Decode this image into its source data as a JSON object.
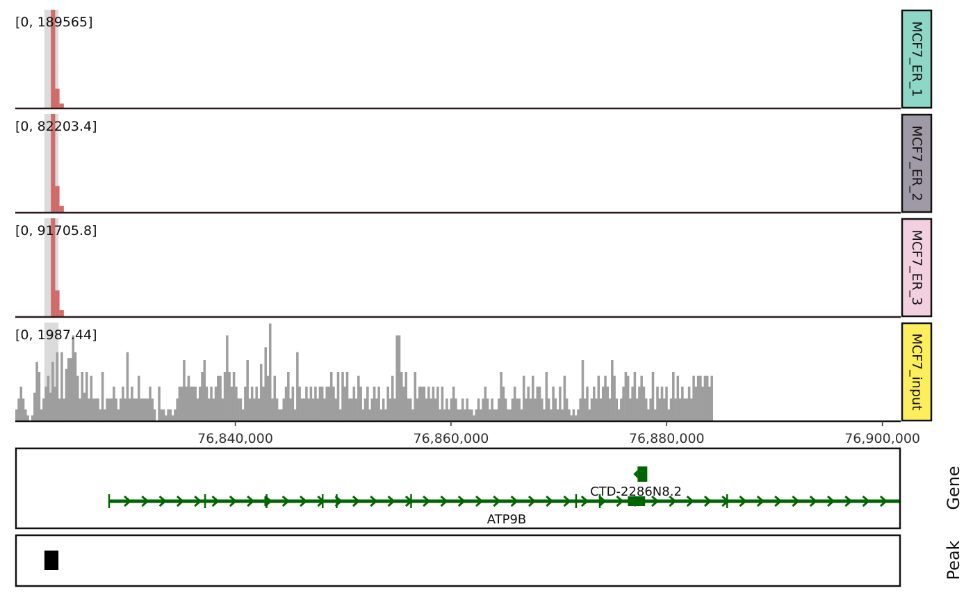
{
  "chart_data": {
    "type": "genome-browser-tracks",
    "region": {
      "start": 76819600,
      "end": 76901700
    },
    "highlight": {
      "start": 76822300,
      "end": 76823600
    },
    "colors": {
      "signal": "#d16a6a",
      "input": "#9e9e9e",
      "highlight": "#c8c8c8",
      "gene": "#006400",
      "peak": "#000000",
      "label_ER_1": "#8ed6c6",
      "label_ER_2": "#a09aa7",
      "label_ER_3": "#f2d0df",
      "label_input": "#fcee5c"
    },
    "tracks": [
      {
        "name": "MCF7_ER_1",
        "range_label": "[0, 189565]",
        "bins": [
          [
            76822900,
            76823300,
            1.0
          ],
          [
            76823300,
            76823700,
            0.2
          ],
          [
            76823700,
            76824100,
            0.05
          ]
        ]
      },
      {
        "name": "MCF7_ER_2",
        "range_label": "[0, 82203.4]",
        "bins": [
          [
            76822900,
            76823300,
            1.0
          ],
          [
            76823300,
            76823700,
            0.27
          ],
          [
            76823700,
            76824100,
            0.07
          ]
        ]
      },
      {
        "name": "MCF7_ER_3",
        "range_label": "[0, 91705.8]",
        "bins": [
          [
            76822900,
            76823300,
            1.0
          ],
          [
            76823300,
            76823700,
            0.27
          ],
          [
            76823700,
            76824100,
            0.07
          ]
        ]
      },
      {
        "name": "MCF7_input",
        "range_label": "[0, 1987.44]",
        "bin_start": 76819600,
        "bin_width": 210,
        "values": [
          0.12,
          0.23,
          0.35,
          0.23,
          0.12,
          0.06,
          0.0,
          0.06,
          0.29,
          0.6,
          0.5,
          0.12,
          0.23,
          0.35,
          0.46,
          0.29,
          0.6,
          0.35,
          0.7,
          0.23,
          0.7,
          0.23,
          0.53,
          0.64,
          0.64,
          0.87,
          0.7,
          0.46,
          0.23,
          0.5,
          0.29,
          0.5,
          0.23,
          0.46,
          0.23,
          0.23,
          0.23,
          0.12,
          0.5,
          0.12,
          0.23,
          0.23,
          0.23,
          0.35,
          0.23,
          0.12,
          0.23,
          0.35,
          0.23,
          0.7,
          0.23,
          0.35,
          0.23,
          0.23,
          0.46,
          0.23,
          0.23,
          0.23,
          0.23,
          0.35,
          0.23,
          0.12,
          0.0,
          0.35,
          0.12,
          0.12,
          0.06,
          0.12,
          0.12,
          0.06,
          0.12,
          0.23,
          0.35,
          0.35,
          0.62,
          0.35,
          0.46,
          0.35,
          0.35,
          0.35,
          0.23,
          0.35,
          0.5,
          0.62,
          0.35,
          0.23,
          0.35,
          0.23,
          0.35,
          0.46,
          0.46,
          0.23,
          0.5,
          0.87,
          0.5,
          0.35,
          0.5,
          0.35,
          0.23,
          0.23,
          0.12,
          0.35,
          0.62,
          0.23,
          0.35,
          0.23,
          0.35,
          0.23,
          0.58,
          0.35,
          0.75,
          0.46,
          0.99,
          0.23,
          0.46,
          0.23,
          0.12,
          0.12,
          0.23,
          0.35,
          0.5,
          0.23,
          0.35,
          0.12,
          0.7,
          0.35,
          0.23,
          0.23,
          0.35,
          0.23,
          0.35,
          0.23,
          0.35,
          0.23,
          0.35,
          0.35,
          0.23,
          0.35,
          0.35,
          0.5,
          0.35,
          0.23,
          0.5,
          0.12,
          0.5,
          0.35,
          0.5,
          0.23,
          0.23,
          0.35,
          0.23,
          0.46,
          0.35,
          0.12,
          0.23,
          0.35,
          0.12,
          0.23,
          0.35,
          0.23,
          0.35,
          0.12,
          0.23,
          0.12,
          0.35,
          0.23,
          0.46,
          0.23,
          0.87,
          0.87,
          0.5,
          0.35,
          0.5,
          0.23,
          0.23,
          0.12,
          0.5,
          0.23,
          0.35,
          0.35,
          0.35,
          0.23,
          0.35,
          0.23,
          0.35,
          0.23,
          0.35,
          0.12,
          0.35,
          0.12,
          0.23,
          0.12,
          0.23,
          0.35,
          0.23,
          0.12,
          0.12,
          0.23,
          0.12,
          0.23,
          0.12,
          0.12,
          0.06,
          0.12,
          0.23,
          0.12,
          0.23,
          0.35,
          0.23,
          0.12,
          0.23,
          0.12,
          0.12,
          0.23,
          0.5,
          0.35,
          0.23,
          0.12,
          0.12,
          0.23,
          0.35,
          0.23,
          0.23,
          0.12,
          0.46,
          0.23,
          0.35,
          0.23,
          0.46,
          0.23,
          0.35,
          0.35,
          0.23,
          0.12,
          0.5,
          0.23,
          0.12,
          0.35,
          0.23,
          0.12,
          0.35,
          0.12,
          0.46,
          0.23,
          0.12,
          0.06,
          0.12,
          0.06,
          0.12,
          0.23,
          0.62,
          0.23,
          0.35,
          0.12,
          0.23,
          0.35,
          0.23,
          0.46,
          0.23,
          0.35,
          0.46,
          0.35,
          0.23,
          0.62,
          0.46,
          0.23,
          0.12,
          0.23,
          0.35,
          0.5,
          0.46,
          0.23,
          0.35,
          0.5,
          0.23,
          0.35,
          0.46,
          0.35,
          0.23,
          0.12,
          0.23,
          0.5,
          0.12,
          0.35,
          0.23,
          0.35,
          0.23,
          0.35,
          0.12,
          0.23,
          0.5,
          0.23,
          0.46,
          0.23,
          0.35,
          0.23,
          0.23,
          0.35,
          0.23,
          0.46,
          0.35,
          0.46,
          0.46,
          0.35,
          0.46,
          0.46,
          0.35,
          0.46
        ]
      }
    ],
    "x_ticks": [
      {
        "value": 76840000,
        "label": "76,840,000"
      },
      {
        "value": 76860000,
        "label": "76,860,000"
      },
      {
        "value": 76880000,
        "label": "76,880,000"
      },
      {
        "value": 76900000,
        "label": "76,900,000"
      }
    ],
    "genes": [
      {
        "name": "ATP9B",
        "start": 76828300,
        "end": 76901700,
        "strand": "+",
        "exons": [
          76828300,
          76837200,
          76842900,
          76848100,
          76849400,
          76856300,
          76871600,
          76873800,
          76885600
        ],
        "thick_exons": [
          [
            76842700,
            76843000
          ],
          [
            76876400,
            76878000
          ]
        ]
      },
      {
        "name": "CTD-2286N8.2",
        "start": 76877300,
        "end": 76878200,
        "strand": "-"
      }
    ],
    "gene_track_label": "Gene",
    "peak_track_label": "Peak",
    "peaks": [
      {
        "start": 76822300,
        "end": 76823600
      }
    ]
  }
}
